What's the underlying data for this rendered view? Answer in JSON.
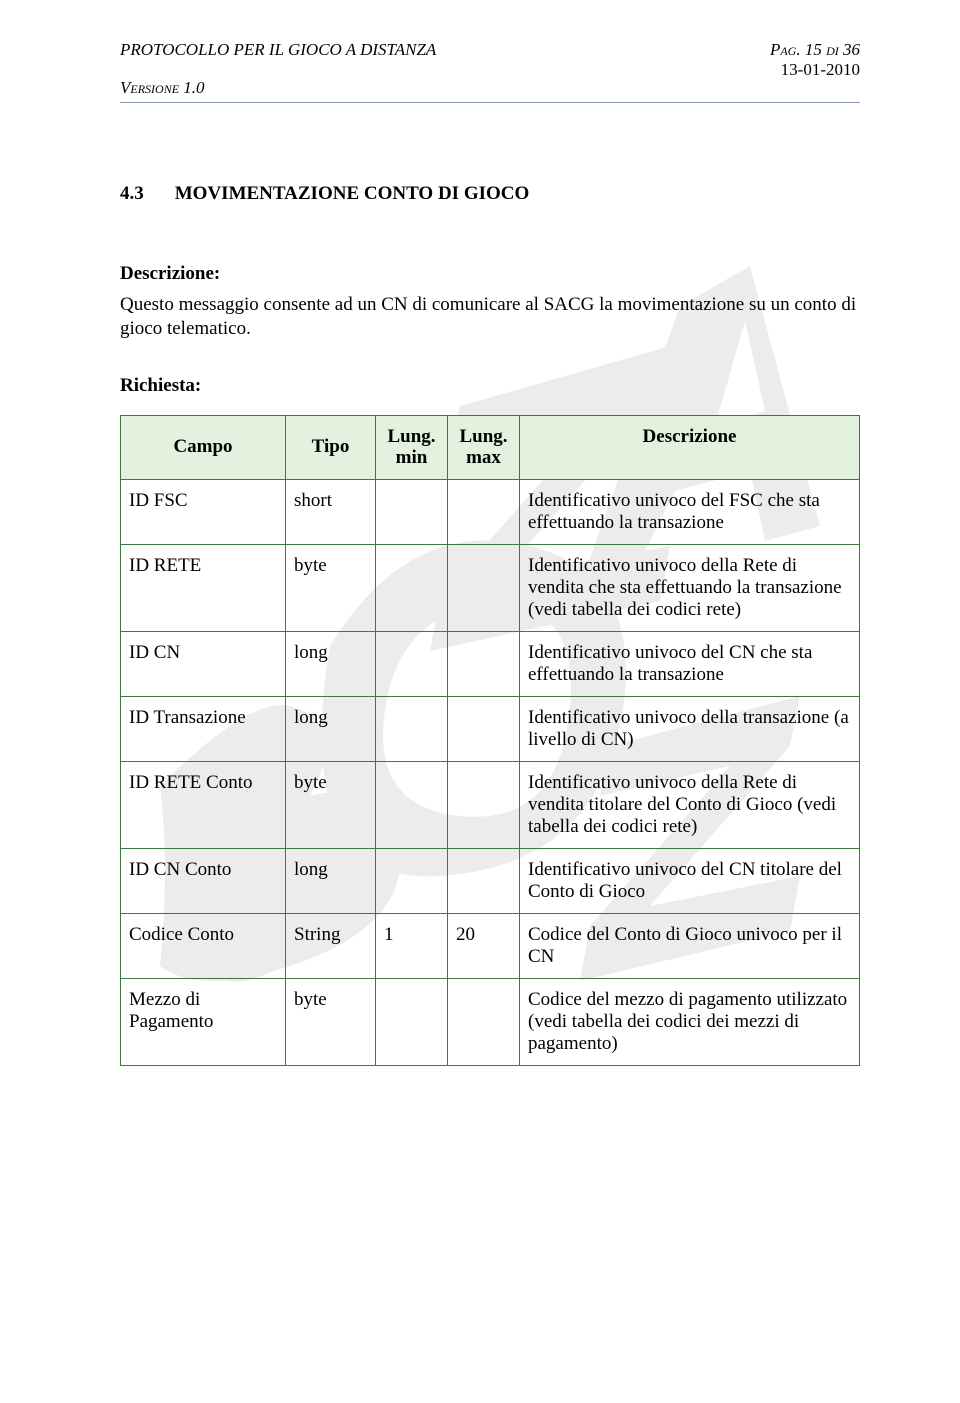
{
  "header": {
    "doc_title": "PROTOCOLLO PER IL GIOCO A DISTANZA",
    "version_label": "Versione 1.0",
    "page_label": "Pag. 15 di 36",
    "date": "13-01-2010"
  },
  "section": {
    "number": "4.3",
    "title": "MOVIMENTAZIONE CONTO DI GIOCO"
  },
  "description": {
    "label": "Descrizione:",
    "text": "Questo messaggio consente ad un CN di comunicare al SACG la movimentazione su un conto di gioco telematico."
  },
  "request": {
    "label": "Richiesta:"
  },
  "table": {
    "headers": {
      "campo": "Campo",
      "tipo": "Tipo",
      "lung_min": "Lung. min",
      "lung_max": "Lung. max",
      "descrizione": "Descrizione"
    },
    "rows": [
      {
        "campo": "ID FSC",
        "tipo": "short",
        "min": "",
        "max": "",
        "desc": "Identificativo univoco del FSC che sta effettuando la transazione"
      },
      {
        "campo": "ID RETE",
        "tipo": "byte",
        "min": "",
        "max": "",
        "desc": "Identificativo univoco della Rete di vendita che sta effettuando la transazione (vedi tabella dei codici rete)"
      },
      {
        "campo": "ID CN",
        "tipo": "long",
        "min": "",
        "max": "",
        "desc": "Identificativo univoco del CN che sta effettuando la transazione"
      },
      {
        "campo": "ID Transazione",
        "tipo": "long",
        "min": "",
        "max": "",
        "desc": "Identificativo univoco della transazione (a livello di CN)"
      },
      {
        "campo": "ID RETE Conto",
        "tipo": "byte",
        "min": "",
        "max": "",
        "desc": "Identificativo univoco della Rete di vendita titolare del Conto di Gioco (vedi tabella dei codici rete)"
      },
      {
        "campo": "ID CN Conto",
        "tipo": "long",
        "min": "",
        "max": "",
        "desc": "Identificativo univoco del CN titolare del Conto di Gioco"
      },
      {
        "campo": "Codice Conto",
        "tipo": "String",
        "min": "1",
        "max": "20",
        "desc": "Codice del Conto di Gioco univoco per il CN"
      },
      {
        "campo": "Mezzo di Pagamento",
        "tipo": "byte",
        "min": "",
        "max": "",
        "desc": "Codice del mezzo di pagamento utilizzato (vedi tabella dei codici dei mezzi di pagamento)"
      }
    ]
  },
  "colors": {
    "header_rule": "#8a9bb5",
    "table_border": "#3b7a3a",
    "table_header_bg": "#e2f2de",
    "watermark": "#999999"
  }
}
